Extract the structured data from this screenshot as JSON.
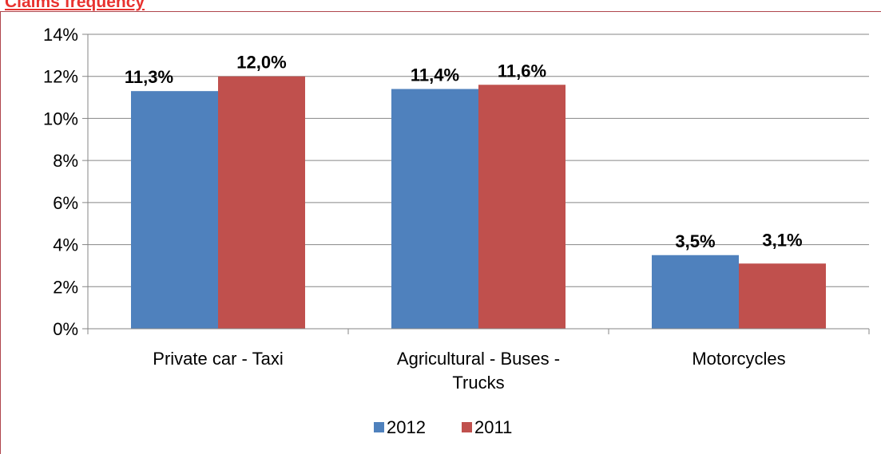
{
  "page_title": "Claims frequency",
  "chart_data": {
    "type": "bar",
    "title": "",
    "categories": [
      [
        "Private car - Taxi"
      ],
      [
        "Agricultural - Buses -",
        "Trucks"
      ],
      [
        "Motorcycles"
      ]
    ],
    "series": [
      {
        "name": "2012",
        "color": "#4f81bd",
        "values": [
          11.3,
          11.4,
          3.5
        ],
        "labels": [
          "11,3%",
          "11,4%",
          "3,5%"
        ]
      },
      {
        "name": "2011",
        "color": "#c0504d",
        "values": [
          12.0,
          11.6,
          3.1
        ],
        "labels": [
          "12,0%",
          "11,6%",
          "3,1%"
        ]
      }
    ],
    "y_ticks": [
      "0%",
      "2%",
      "4%",
      "6%",
      "8%",
      "10%",
      "12%",
      "14%"
    ],
    "ylim": [
      0,
      14
    ],
    "grid": true,
    "legend_position": "bottom"
  }
}
